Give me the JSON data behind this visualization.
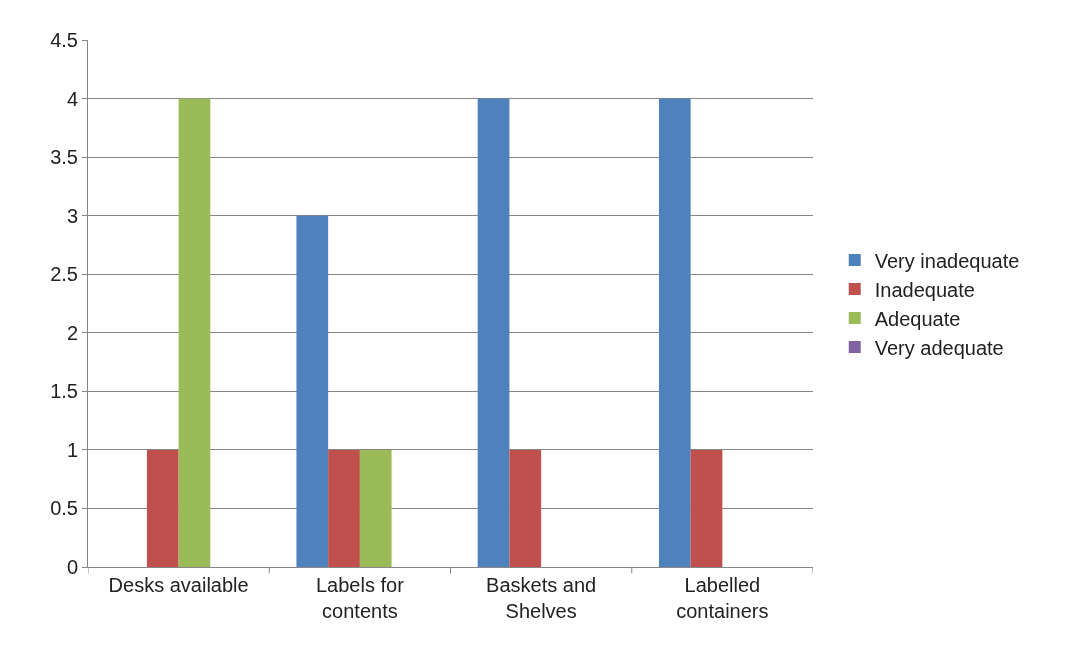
{
  "chart_data": {
    "type": "bar",
    "categories": [
      "Desks available",
      "Labels for contents",
      "Baskets and Shelves",
      "Labelled containers"
    ],
    "series": [
      {
        "name": "Very inadequate",
        "color": "#4f81bd",
        "values": [
          0,
          3,
          4,
          4
        ]
      },
      {
        "name": "Inadequate",
        "color": "#c0504d",
        "values": [
          1,
          1,
          1,
          1
        ]
      },
      {
        "name": "Adequate",
        "color": "#9bbb59",
        "values": [
          4,
          1,
          0,
          0
        ]
      },
      {
        "name": "Very adequate",
        "color": "#8064a2",
        "values": [
          0,
          0,
          0,
          0
        ]
      }
    ],
    "ylim": [
      0,
      4.5
    ],
    "yticks": [
      0,
      0.5,
      1,
      1.5,
      2,
      2.5,
      3,
      3.5,
      4,
      4.5
    ],
    "grid": "y",
    "legend": "right"
  }
}
